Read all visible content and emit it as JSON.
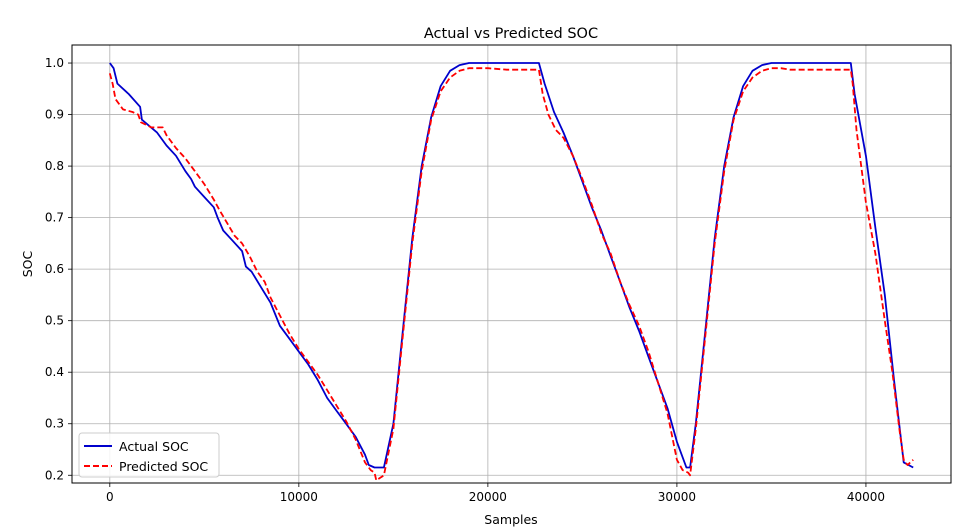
{
  "chart_data": {
    "type": "line",
    "title": "Actual vs Predicted SOC",
    "xlabel": "Samples",
    "ylabel": "SOC",
    "xlim": [
      -2000,
      44500
    ],
    "ylim": [
      0.185,
      1.035
    ],
    "xticks": [
      0,
      10000,
      20000,
      30000,
      40000
    ],
    "xtick_labels": [
      "0",
      "10000",
      "20000",
      "30000",
      "40000"
    ],
    "yticks": [
      0.2,
      0.3,
      0.4,
      0.5,
      0.6,
      0.7,
      0.8,
      0.9,
      1.0
    ],
    "ytick_labels": [
      "0.2",
      "0.3",
      "0.4",
      "0.5",
      "0.6",
      "0.7",
      "0.8",
      "0.9",
      "1.0"
    ],
    "grid": true,
    "legend_position": "bottom-left",
    "series": [
      {
        "name": "Actual SOC",
        "color": "#0000cc",
        "style": "solid",
        "x": [
          0,
          200,
          400,
          1000,
          1600,
          1700,
          2500,
          3000,
          3500,
          4000,
          4300,
          4500,
          5000,
          5500,
          5700,
          6000,
          6500,
          7000,
          7200,
          7500,
          8000,
          8500,
          9000,
          9500,
          10000,
          10500,
          11000,
          11500,
          12000,
          12500,
          13000,
          13500,
          13700,
          14000,
          14500,
          15000,
          15500,
          16000,
          16500,
          17000,
          17500,
          18000,
          18500,
          19000,
          20000,
          21000,
          22000,
          22700,
          23000,
          23500,
          24000,
          24500,
          25000,
          25500,
          26000,
          26500,
          27000,
          27500,
          28000,
          28500,
          29000,
          29500,
          30000,
          30500,
          30700,
          31000,
          31500,
          32000,
          32500,
          33000,
          33500,
          34000,
          34500,
          35000,
          35500,
          36000,
          37000,
          38000,
          39200,
          39400,
          40000,
          40500,
          41000,
          41500,
          42000,
          42500
        ],
        "y": [
          1.0,
          0.99,
          0.96,
          0.94,
          0.915,
          0.89,
          0.865,
          0.84,
          0.82,
          0.79,
          0.775,
          0.76,
          0.74,
          0.72,
          0.7,
          0.675,
          0.655,
          0.635,
          0.605,
          0.595,
          0.565,
          0.535,
          0.49,
          0.465,
          0.44,
          0.415,
          0.385,
          0.35,
          0.325,
          0.3,
          0.275,
          0.24,
          0.22,
          0.215,
          0.215,
          0.3,
          0.48,
          0.66,
          0.8,
          0.895,
          0.955,
          0.985,
          0.996,
          1.0,
          1.0,
          1.0,
          1.0,
          1.0,
          0.96,
          0.905,
          0.865,
          0.82,
          0.77,
          0.72,
          0.675,
          0.625,
          0.575,
          0.525,
          0.48,
          0.43,
          0.38,
          0.33,
          0.265,
          0.215,
          0.215,
          0.3,
          0.48,
          0.66,
          0.8,
          0.895,
          0.955,
          0.985,
          0.996,
          1.0,
          1.0,
          1.0,
          1.0,
          1.0,
          1.0,
          0.94,
          0.82,
          0.68,
          0.55,
          0.38,
          0.225,
          0.215
        ]
      },
      {
        "name": "Predicted SOC",
        "color": "#ff0000",
        "style": "dashed",
        "x": [
          0,
          150,
          300,
          700,
          1200,
          1500,
          1650,
          2200,
          2800,
          3000,
          3500,
          4000,
          4500,
          5000,
          5500,
          5800,
          6200,
          6600,
          7000,
          7400,
          7800,
          8200,
          8500,
          9000,
          9500,
          10000,
          10500,
          11000,
          11500,
          12000,
          12500,
          13000,
          13500,
          13800,
          14000,
          14100,
          14500,
          15000,
          15500,
          16000,
          16500,
          17000,
          17500,
          18000,
          18500,
          19000,
          20000,
          21000,
          22000,
          22700,
          22900,
          23200,
          23600,
          24000,
          24500,
          25000,
          25500,
          26000,
          26500,
          27000,
          27500,
          28000,
          28500,
          29000,
          29500,
          30000,
          30300,
          30600,
          30700,
          31000,
          31500,
          32000,
          32500,
          33000,
          33500,
          34000,
          34500,
          35000,
          35500,
          36000,
          37000,
          38000,
          39200,
          39300,
          39500,
          40000,
          40500,
          41000,
          41400,
          41800,
          42000,
          42200,
          42500
        ],
        "y": [
          0.98,
          0.96,
          0.93,
          0.91,
          0.905,
          0.9,
          0.885,
          0.875,
          0.875,
          0.86,
          0.835,
          0.815,
          0.79,
          0.765,
          0.735,
          0.715,
          0.69,
          0.665,
          0.65,
          0.625,
          0.595,
          0.575,
          0.545,
          0.51,
          0.475,
          0.445,
          0.42,
          0.395,
          0.365,
          0.335,
          0.305,
          0.27,
          0.225,
          0.21,
          0.205,
          0.19,
          0.2,
          0.29,
          0.47,
          0.65,
          0.79,
          0.89,
          0.945,
          0.972,
          0.985,
          0.99,
          0.99,
          0.987,
          0.987,
          0.987,
          0.94,
          0.9,
          0.87,
          0.855,
          0.82,
          0.775,
          0.725,
          0.67,
          0.63,
          0.575,
          0.53,
          0.49,
          0.44,
          0.38,
          0.32,
          0.23,
          0.21,
          0.205,
          0.2,
          0.29,
          0.47,
          0.65,
          0.79,
          0.89,
          0.945,
          0.972,
          0.985,
          0.99,
          0.99,
          0.987,
          0.987,
          0.987,
          0.987,
          0.96,
          0.87,
          0.73,
          0.63,
          0.5,
          0.4,
          0.28,
          0.23,
          0.22,
          0.23
        ]
      }
    ]
  }
}
